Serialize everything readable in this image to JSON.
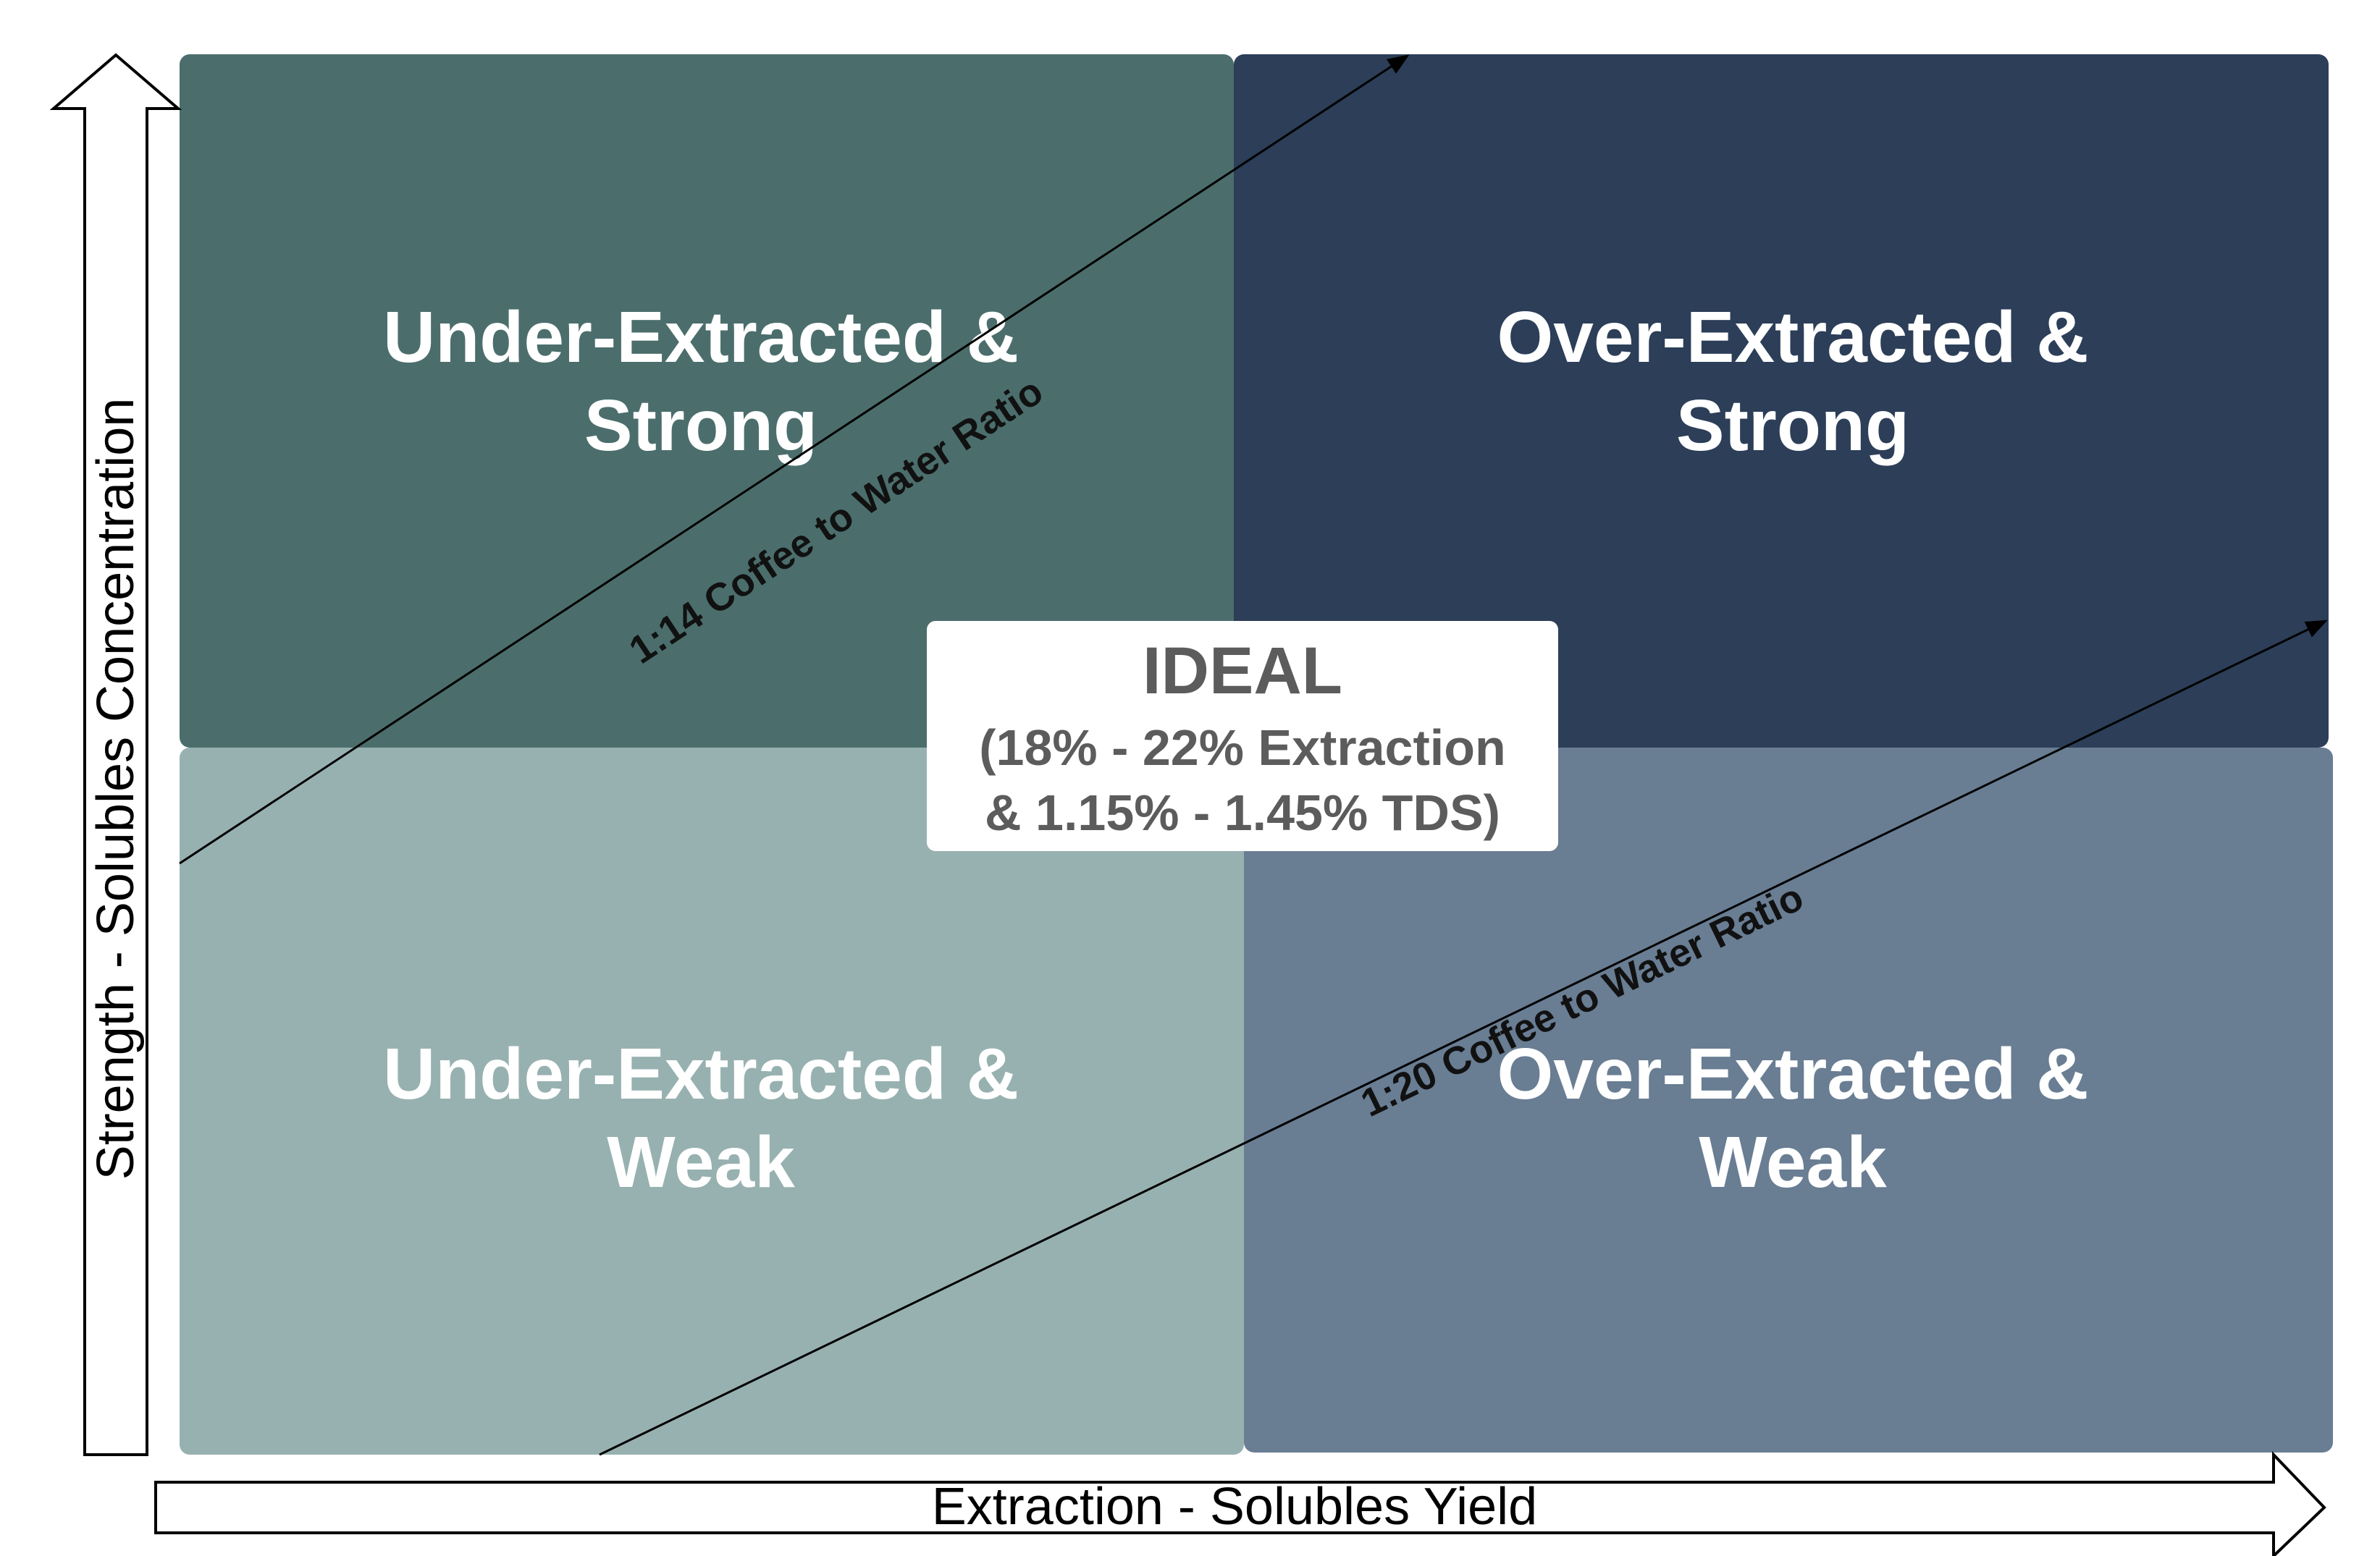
{
  "quadrants": {
    "top_left": {
      "line1": "Under-Extracted &",
      "line2": "Strong",
      "color": "#4b6e6c"
    },
    "top_right": {
      "line1": "Over-Extracted &",
      "line2": "Strong",
      "color": "#2c3e58"
    },
    "bottom_left": {
      "line1": "Under-Extracted &",
      "line2": "Weak",
      "color": "#97b1b0"
    },
    "bottom_right": {
      "line1": "Over-Extracted &",
      "line2": "Weak",
      "color": "#697d93"
    }
  },
  "ideal": {
    "title": "IDEAL",
    "line1": "(18% - 22% Extraction",
    "line2": "& 1.15% - 1.45% TDS)"
  },
  "axes": {
    "y_label": "Strength - Solubles Concentration",
    "x_label": "Extraction - Solubles Yield"
  },
  "ratio_lines": {
    "upper": "1:14 Coffee to Water Ratio",
    "lower": "1:20 Coffee to Water Ratio"
  }
}
